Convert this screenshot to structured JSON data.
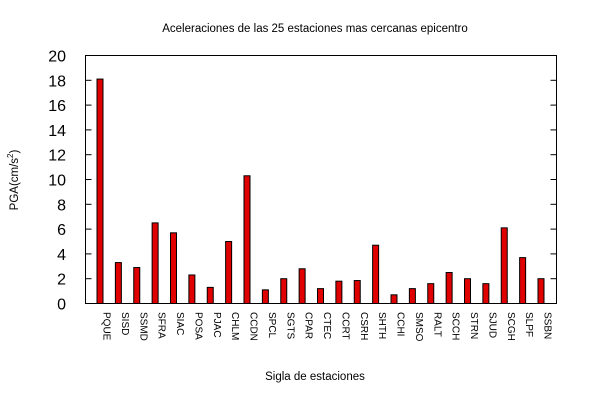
{
  "chart_data": {
    "type": "bar",
    "title": "Aceleraciones de las 25 estaciones mas cercanas epicentro",
    "xlabel": "Sigla de estaciones",
    "ylabel": "PGA(cm/s",
    "ylabel_sup": "2",
    "ylabel_end": ")",
    "ylim": [
      0,
      20
    ],
    "yticks": [
      0,
      2,
      4,
      6,
      8,
      10,
      12,
      14,
      16,
      18,
      20
    ],
    "grid": false,
    "bar_color": "#e00000",
    "categories": [
      "PQUE",
      "SISD",
      "SSMD",
      "SFRA",
      "SIAC",
      "POSA",
      "PJAC",
      "CHLM",
      "CCDN",
      "SPCL",
      "SGTS",
      "CPAR",
      "CTEC",
      "CCRT",
      "CSRH",
      "SHTH",
      "CCHI",
      "SMSO",
      "RALT",
      "SCCH",
      "STRN",
      "SJUD",
      "SCGH",
      "SLPF",
      "SSBN"
    ],
    "values": [
      18.1,
      3.3,
      2.9,
      6.5,
      5.7,
      2.3,
      1.3,
      5.0,
      10.3,
      1.1,
      2.0,
      2.8,
      1.2,
      1.8,
      1.85,
      4.7,
      0.7,
      1.2,
      1.6,
      2.5,
      2.0,
      1.6,
      6.1,
      3.7,
      2.0
    ]
  }
}
